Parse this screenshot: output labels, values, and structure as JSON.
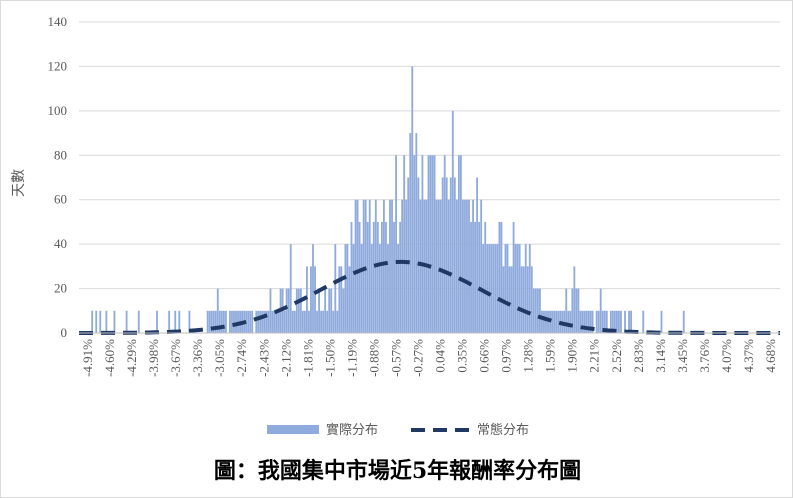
{
  "caption": "圖：我國集中市場近5年報酬率分布圖",
  "chart_data": {
    "type": "bar",
    "ylabel": "天數",
    "ylim": [
      0,
      140
    ],
    "yticks": [
      0,
      20,
      40,
      60,
      80,
      100,
      120,
      140
    ],
    "grid": true,
    "legend_position": "bottom",
    "xtick_labels": [
      "-4.91%",
      "-4.60%",
      "-4.29%",
      "-3.98%",
      "-3.67%",
      "-3.36%",
      "-3.05%",
      "-2.74%",
      "-2.43%",
      "-2.12%",
      "-1.81%",
      "-1.50%",
      "-1.19%",
      "-0.88%",
      "-0.57%",
      "-0.27%",
      "0.04%",
      "0.35%",
      "0.66%",
      "0.97%",
      "1.28%",
      "1.59%",
      "1.90%",
      "2.21%",
      "2.52%",
      "2.83%",
      "3.14%",
      "3.45%",
      "3.76%",
      "4.07%",
      "4.37%",
      "4.68%"
    ],
    "series": [
      {
        "name": "實際分布",
        "kind": "bar",
        "color": "#8faadc",
        "x_start": -4.91,
        "bin_width": 0.031,
        "values": [
          0,
          0,
          0,
          0,
          0,
          0,
          10,
          0,
          10,
          0,
          10,
          0,
          0,
          10,
          0,
          0,
          0,
          10,
          0,
          0,
          0,
          0,
          0,
          10,
          0,
          0,
          0,
          0,
          0,
          10,
          0,
          0,
          0,
          0,
          0,
          0,
          0,
          0,
          10,
          0,
          0,
          0,
          0,
          0,
          10,
          0,
          0,
          10,
          0,
          10,
          0,
          0,
          0,
          0,
          10,
          0,
          0,
          0,
          0,
          0,
          0,
          0,
          0,
          10,
          10,
          10,
          10,
          10,
          20,
          10,
          10,
          10,
          10,
          0,
          10,
          10,
          10,
          10,
          10,
          10,
          10,
          10,
          10,
          10,
          10,
          10,
          0,
          10,
          10,
          10,
          10,
          10,
          10,
          10,
          20,
          10,
          10,
          10,
          10,
          20,
          20,
          10,
          20,
          20,
          40,
          10,
          10,
          20,
          20,
          20,
          10,
          10,
          30,
          10,
          30,
          40,
          30,
          10,
          20,
          10,
          10,
          20,
          10,
          20,
          20,
          10,
          40,
          10,
          30,
          30,
          20,
          40,
          40,
          30,
          50,
          40,
          60,
          60,
          50,
          40,
          60,
          60,
          50,
          60,
          40,
          50,
          60,
          50,
          40,
          50,
          60,
          50,
          40,
          60,
          60,
          50,
          80,
          40,
          50,
          60,
          80,
          60,
          70,
          90,
          120,
          80,
          90,
          70,
          60,
          80,
          60,
          60,
          80,
          80,
          80,
          80,
          60,
          60,
          60,
          70,
          80,
          70,
          60,
          70,
          100,
          70,
          60,
          80,
          80,
          60,
          60,
          60,
          60,
          50,
          60,
          50,
          70,
          50,
          60,
          40,
          50,
          40,
          40,
          40,
          40,
          40,
          40,
          50,
          50,
          30,
          40,
          40,
          30,
          30,
          50,
          40,
          40,
          40,
          30,
          30,
          40,
          30,
          40,
          30,
          20,
          20,
          20,
          20,
          10,
          10,
          10,
          10,
          10,
          10,
          10,
          10,
          10,
          10,
          10,
          10,
          20,
          10,
          10,
          20,
          30,
          20,
          20,
          10,
          10,
          10,
          10,
          10,
          10,
          10,
          0,
          10,
          10,
          20,
          10,
          10,
          10,
          0,
          10,
          10,
          10,
          10,
          10,
          10,
          0,
          10,
          0,
          10,
          10,
          0,
          0,
          0,
          0,
          0,
          10,
          0,
          0,
          0,
          0,
          0,
          0,
          0,
          0,
          10,
          0,
          0,
          0,
          0,
          0,
          0,
          0,
          0,
          0,
          0,
          10,
          0,
          0,
          0,
          0,
          0,
          0,
          0,
          0,
          0,
          0,
          0,
          0,
          0,
          0,
          0,
          0,
          0,
          0,
          0,
          0,
          0,
          0,
          0,
          0,
          0,
          0,
          0,
          0,
          0,
          0,
          0,
          0,
          0,
          0,
          0,
          0,
          0,
          0,
          0,
          0,
          0,
          0,
          0,
          0,
          0,
          0,
          0
        ]
      },
      {
        "name": "常態分布",
        "kind": "line",
        "style": "dashed",
        "color": "#1f3864",
        "mean": 0.0,
        "std": 1.23,
        "peak": 32
      }
    ]
  }
}
